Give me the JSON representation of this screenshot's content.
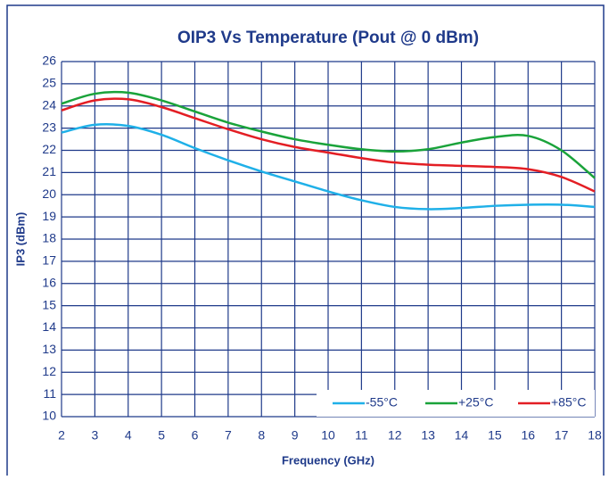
{
  "chart_data": {
    "type": "line",
    "title": "OIP3 Vs Temperature (Pout @ 0 dBm)",
    "x_label": "Frequency (GHz)",
    "y_label": "IP3 (dBm)",
    "x": [
      2,
      3,
      4,
      5,
      6,
      7,
      8,
      9,
      10,
      11,
      12,
      13,
      14,
      15,
      16,
      17,
      18
    ],
    "series": [
      {
        "name": "-55°C",
        "color": "#1fb0e8",
        "values": [
          22.8,
          23.15,
          23.1,
          22.7,
          22.1,
          21.55,
          21.05,
          20.6,
          20.15,
          19.75,
          19.45,
          19.35,
          19.4,
          19.5,
          19.55,
          19.55,
          19.45
        ]
      },
      {
        "name": "+25°C",
        "color": "#1aa33a",
        "values": [
          24.1,
          24.55,
          24.6,
          24.25,
          23.75,
          23.25,
          22.85,
          22.5,
          22.25,
          22.05,
          21.95,
          22.05,
          22.35,
          22.6,
          22.65,
          22.0,
          20.75
        ]
      },
      {
        "name": "+85°C",
        "color": "#e31e24",
        "values": [
          23.8,
          24.25,
          24.3,
          23.95,
          23.45,
          22.95,
          22.5,
          22.15,
          21.9,
          21.65,
          21.45,
          21.35,
          21.3,
          21.25,
          21.15,
          20.8,
          20.15
        ]
      }
    ],
    "xlim": [
      2,
      18
    ],
    "xticks": [
      2,
      3,
      4,
      5,
      6,
      7,
      8,
      9,
      10,
      11,
      12,
      13,
      14,
      15,
      16,
      17,
      18
    ],
    "ylim": [
      10,
      26
    ],
    "yticks": [
      10,
      11,
      12,
      13,
      14,
      15,
      16,
      17,
      18,
      19,
      20,
      21,
      22,
      23,
      24,
      25,
      26
    ],
    "grid": true,
    "legend": "lower right"
  }
}
